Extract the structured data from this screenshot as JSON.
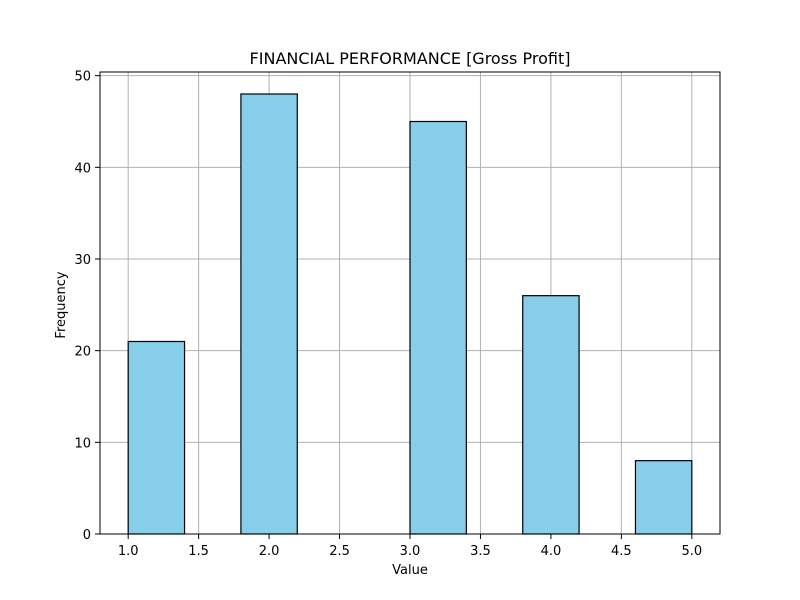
{
  "chart_data": {
    "type": "bar",
    "subtype": "histogram",
    "title": "FINANCIAL PERFORMANCE [Gross Profit]",
    "xlabel": "Value",
    "ylabel": "Frequency",
    "xlim": [
      0.8,
      5.2
    ],
    "ylim": [
      0,
      50.4
    ],
    "xticks": [
      1.0,
      1.5,
      2.0,
      2.5,
      3.0,
      3.5,
      4.0,
      4.5,
      5.0
    ],
    "xtick_labels": [
      "1.0",
      "1.5",
      "2.0",
      "2.5",
      "3.0",
      "3.5",
      "4.0",
      "4.5",
      "5.0"
    ],
    "yticks": [
      0,
      10,
      20,
      30,
      40,
      50
    ],
    "ytick_labels": [
      "0",
      "10",
      "20",
      "30",
      "40",
      "50"
    ],
    "grid": true,
    "bar_color": "#87ceeb",
    "edge_color": "#000000",
    "bins": [
      {
        "x0": 1.0,
        "x1": 1.4,
        "value": 21
      },
      {
        "x0": 1.4,
        "x1": 1.8,
        "value": 0
      },
      {
        "x0": 1.8,
        "x1": 2.2,
        "value": 48
      },
      {
        "x0": 2.2,
        "x1": 2.6,
        "value": 0
      },
      {
        "x0": 2.6,
        "x1": 3.0,
        "value": 0
      },
      {
        "x0": 3.0,
        "x1": 3.4,
        "value": 45
      },
      {
        "x0": 3.4,
        "x1": 3.8,
        "value": 0
      },
      {
        "x0": 3.8,
        "x1": 4.2,
        "value": 26
      },
      {
        "x0": 4.2,
        "x1": 4.6,
        "value": 0
      },
      {
        "x0": 4.6,
        "x1": 5.0,
        "value": 8
      }
    ]
  }
}
